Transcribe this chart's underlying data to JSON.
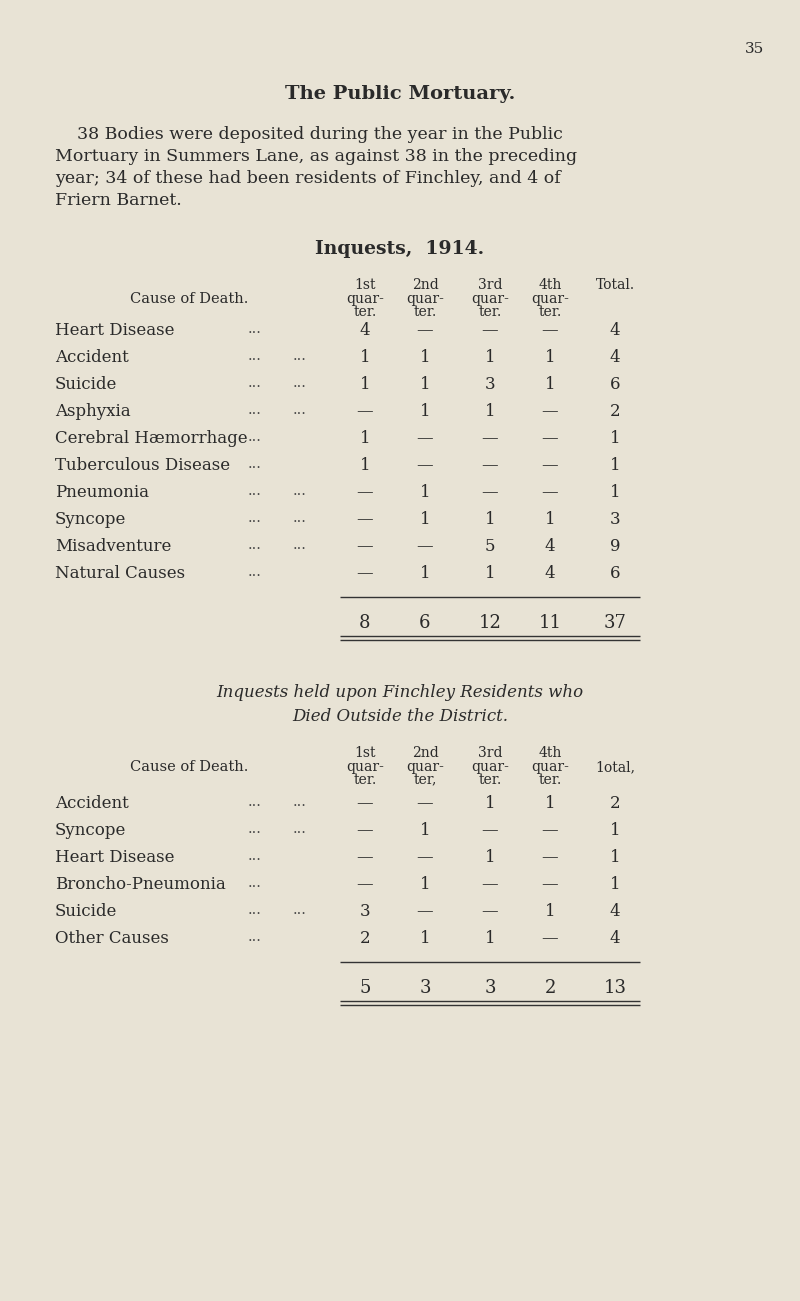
{
  "bg_color": "#e8e3d5",
  "text_color": "#2a2a2a",
  "page_number": "35",
  "title": "The Public Mortuary.",
  "intro_lines": [
    "    38 Bodies were deposited during the year in the Public",
    "Mortuary in Summers Lane, as against 38 in the preceding",
    "year; 34 of these had been residents of Finchley, and 4 of",
    "Friern Barnet."
  ],
  "table1_title": "Inquests,  1914.",
  "table1_header": [
    "Cause of Death.",
    "1st\nquar-\nter.",
    "2nd\nquar-\nter.",
    "3rd\nquar-\nter.",
    "4th\nquar-\nter.",
    "Total."
  ],
  "table1_rows": [
    [
      "Heart Disease",
      "...",
      "",
      "4",
      "—",
      "—",
      "—",
      "4"
    ],
    [
      "Accident",
      "...",
      "...",
      "1",
      "1",
      "1",
      "1",
      "4"
    ],
    [
      "Suicide",
      "...",
      "...",
      "1",
      "1",
      "3",
      "1",
      "6"
    ],
    [
      "Asphyxia",
      "...",
      "...",
      "—",
      "1",
      "1",
      "—",
      "2"
    ],
    [
      "Cerebral Hæmorrhage",
      "...",
      "",
      "1",
      "—",
      "—",
      "—",
      "1"
    ],
    [
      "Tuberculous Disease",
      "...",
      "",
      "1",
      "—",
      "—",
      "—",
      "1"
    ],
    [
      "Pneumonia",
      "...",
      "...",
      "—",
      "1",
      "—",
      "—",
      "1"
    ],
    [
      "Syncope",
      "...",
      "...",
      "—",
      "1",
      "1",
      "1",
      "3"
    ],
    [
      "Misadventure",
      "...",
      "...",
      "—",
      "—",
      "5",
      "4",
      "9"
    ],
    [
      "Natural Causes",
      "...",
      "",
      "—",
      "1",
      "1",
      "4",
      "6"
    ]
  ],
  "table1_totals": [
    "8",
    "6",
    "12",
    "11",
    "37"
  ],
  "table2_title_line1": "Inquests held upon Finchley Residents who",
  "table2_title_line2": "Died Outside the District.",
  "table2_rows": [
    [
      "Accident",
      "...",
      "...",
      "—",
      "—",
      "1",
      "1",
      "2"
    ],
    [
      "Syncope",
      "...",
      "...",
      "—",
      "1",
      "—",
      "—",
      "1"
    ],
    [
      "Heart Disease",
      "...",
      "",
      "—",
      "—",
      "1",
      "—",
      "1"
    ],
    [
      "Broncho-Pneumonia",
      "...",
      "",
      "—",
      "1",
      "—",
      "—",
      "1"
    ],
    [
      "Suicide",
      "...",
      "...",
      "3",
      "—",
      "—",
      "1",
      "4"
    ],
    [
      "Other Causes",
      "...",
      "",
      "2",
      "1",
      "1",
      "—",
      "4"
    ]
  ],
  "table2_totals": [
    "5",
    "3",
    "3",
    "2",
    "13"
  ]
}
